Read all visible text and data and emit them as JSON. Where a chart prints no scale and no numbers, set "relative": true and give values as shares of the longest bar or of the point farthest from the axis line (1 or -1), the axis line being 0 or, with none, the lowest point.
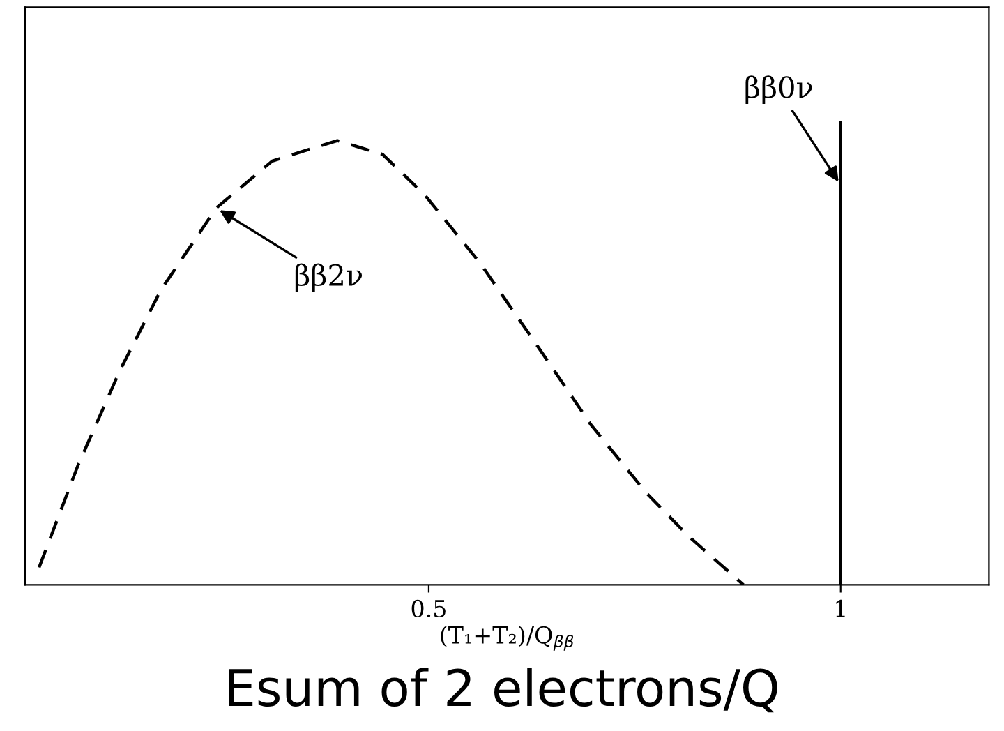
{
  "chart_data": {
    "type": "line",
    "relative": true,
    "xlabel": "(T₁+T₂)/Q$_{ββ}$",
    "xlim": [
      0.01,
      1.18
    ],
    "xticks": [
      0.5,
      1
    ],
    "series": [
      {
        "color": "#000000",
        "line_style": "dashed",
        "x": [
          0.027,
          0.074,
          0.125,
          0.175,
          0.242,
          0.31,
          0.389,
          0.444,
          0.495,
          0.562,
          0.63,
          0.697,
          0.764,
          0.815,
          0.882
        ],
        "values": [
          0.039,
          0.268,
          0.482,
          0.664,
          0.848,
          0.954,
          1.0,
          0.969,
          0.878,
          0.725,
          0.543,
          0.36,
          0.207,
          0.11,
          0.0
        ]
      }
    ],
    "ref_lines": [
      {
        "axis": "x",
        "value": 1,
        "label": "ββ0ν",
        "color": "#000000",
        "line_style": "solid"
      }
    ],
    "annotations": [
      {
        "text": "ββ2ν",
        "x": 0.242,
        "y": 0.848
      },
      "Esum of 2 electrons/Q"
    ],
    "legend": false
  }
}
